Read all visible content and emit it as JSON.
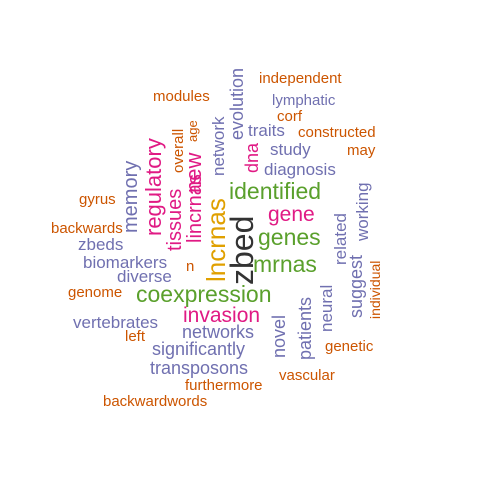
{
  "palette": {
    "orange": "#cc5500",
    "purple": "#7070b0",
    "magenta": "#e01a84",
    "green": "#5aa02c",
    "yellow": "#e0a000",
    "dark": "#333333"
  },
  "words": {
    "independent": "independent",
    "modules": "modules",
    "evolution": "evolution",
    "lymphatic": "lymphatic",
    "corf": "corf",
    "overall": "overall",
    "age": "age",
    "network": "network",
    "traits": "traits",
    "constructed": "constructed",
    "study": "study",
    "may": "may",
    "memory": "memory",
    "regulatory": "regulatory",
    "new": "new",
    "dna": "dna",
    "diagnosis": "diagnosis",
    "identified": "identified",
    "working": "working",
    "gyrus": "gyrus",
    "tissues": "tissues",
    "lincrnas": "lincrnas",
    "lncrnas": "lncrnas",
    "zbed": "zbed",
    "gene": "gene",
    "related": "related",
    "backwards": "backwards",
    "genes": "genes",
    "zbeds": "zbeds",
    "suggest": "suggest",
    "biomarkers": "biomarkers",
    "n": "n",
    "mrnas": "mrnas",
    "individual": "individual",
    "diverse": "diverse",
    "genome": "genome",
    "coexpression": "coexpression",
    "neural": "neural",
    "invasion": "invasion",
    "vertebrates": "vertebrates",
    "patients": "patients",
    "left": "left",
    "networks": "networks",
    "novel": "novel",
    "genetic": "genetic",
    "significantly": "significantly",
    "transposons": "transposons",
    "vascular": "vascular",
    "furthermore": "furthermore",
    "backwardwords": "backwardwords"
  }
}
